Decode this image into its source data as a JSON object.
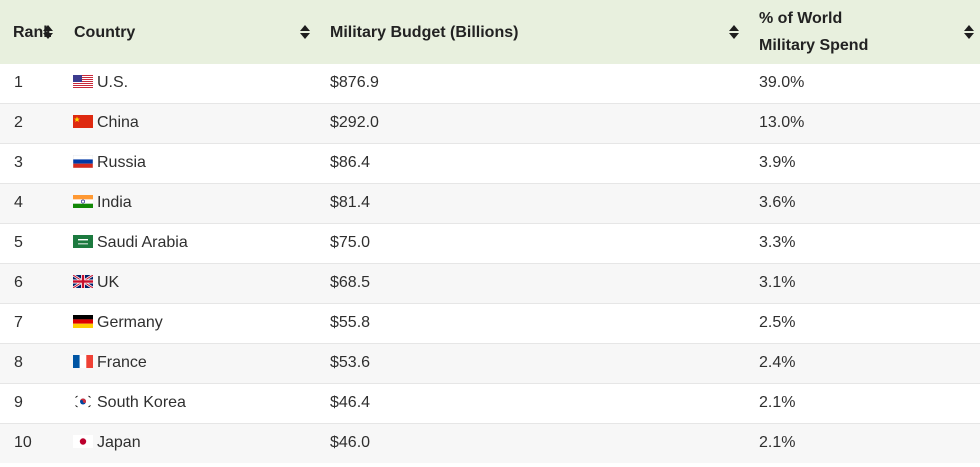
{
  "table": {
    "headers": {
      "rank": "Rank",
      "country": "Country",
      "budget": "Military Budget (Billions)",
      "pct_line1": "% of World",
      "pct_line2": "Military Spend"
    },
    "rows": [
      {
        "rank": "1",
        "country": "U.S.",
        "flag": "us-flag-icon",
        "budget": "$876.9",
        "pct": "39.0%"
      },
      {
        "rank": "2",
        "country": "China",
        "flag": "china-flag-icon",
        "budget": "$292.0",
        "pct": "13.0%"
      },
      {
        "rank": "3",
        "country": "Russia",
        "flag": "russia-flag-icon",
        "budget": "$86.4",
        "pct": "3.9%"
      },
      {
        "rank": "4",
        "country": "India",
        "flag": "india-flag-icon",
        "budget": "$81.4",
        "pct": "3.6%"
      },
      {
        "rank": "5",
        "country": "Saudi Arabia",
        "flag": "saudi-arabia-flag-icon",
        "budget": "$75.0",
        "pct": "3.3%"
      },
      {
        "rank": "6",
        "country": "UK",
        "flag": "uk-flag-icon",
        "budget": "$68.5",
        "pct": "3.1%"
      },
      {
        "rank": "7",
        "country": "Germany",
        "flag": "germany-flag-icon",
        "budget": "$55.8",
        "pct": "2.5%"
      },
      {
        "rank": "8",
        "country": "France",
        "flag": "france-flag-icon",
        "budget": "$53.6",
        "pct": "2.4%"
      },
      {
        "rank": "9",
        "country": "South Korea",
        "flag": "south-korea-flag-icon",
        "budget": "$46.4",
        "pct": "2.1%"
      },
      {
        "rank": "10",
        "country": "Japan",
        "flag": "japan-flag-icon",
        "budget": "$46.0",
        "pct": "2.1%"
      }
    ]
  },
  "colors": {
    "header_background": "#e8f0de",
    "row_stripe": "#f7f7f7",
    "row_divider": "#e6e6e6"
  }
}
